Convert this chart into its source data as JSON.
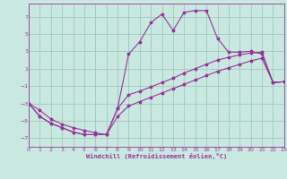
{
  "xlabel": "Windchill (Refroidissement éolien,°C)",
  "bg_color": "#c8e8e0",
  "grid_color": "#a0c8c0",
  "line_color": "#993399",
  "xlim": [
    0,
    23
  ],
  "ylim": [
    -8,
    8.5
  ],
  "yticks": [
    -7,
    -5,
    -3,
    -1,
    1,
    3,
    5,
    7
  ],
  "xticks": [
    0,
    1,
    2,
    3,
    4,
    5,
    6,
    7,
    8,
    9,
    10,
    11,
    12,
    13,
    14,
    15,
    16,
    17,
    18,
    19,
    20,
    21,
    22,
    23
  ],
  "line1_x": [
    0,
    1,
    2,
    3,
    4,
    5,
    6,
    7,
    8,
    9,
    10,
    11,
    12,
    13,
    14,
    15,
    16,
    17,
    18,
    19,
    20,
    21,
    22,
    23
  ],
  "line1_y": [
    -3.0,
    -4.5,
    -5.3,
    -5.8,
    -6.3,
    -6.6,
    -6.6,
    -6.6,
    -3.6,
    2.7,
    4.1,
    6.3,
    7.3,
    5.4,
    7.5,
    7.7,
    7.7,
    4.5,
    2.9,
    2.9,
    3.0,
    2.7,
    -0.6,
    -0.5
  ],
  "line2_x": [
    0,
    1,
    2,
    3,
    4,
    5,
    6,
    7,
    8,
    9,
    10,
    11,
    12,
    13,
    14,
    15,
    16,
    17,
    18,
    19,
    20,
    21,
    22,
    23
  ],
  "line2_y": [
    -3.0,
    -4.5,
    -5.3,
    -5.8,
    -6.3,
    -6.6,
    -6.6,
    -6.6,
    -3.6,
    -2.0,
    -1.6,
    -1.1,
    -0.6,
    -0.1,
    0.5,
    1.0,
    1.5,
    2.0,
    2.3,
    2.6,
    2.8,
    2.9,
    -0.6,
    -0.5
  ],
  "line3_x": [
    0,
    1,
    2,
    3,
    4,
    5,
    6,
    7,
    8,
    9,
    10,
    11,
    12,
    13,
    14,
    15,
    16,
    17,
    18,
    19,
    20,
    21,
    22,
    23
  ],
  "line3_y": [
    -3.0,
    -3.8,
    -4.8,
    -5.4,
    -5.8,
    -6.1,
    -6.4,
    -6.6,
    -4.5,
    -3.3,
    -2.8,
    -2.3,
    -1.8,
    -1.3,
    -0.8,
    -0.3,
    0.2,
    0.7,
    1.1,
    1.5,
    1.9,
    2.2,
    -0.6,
    -0.5
  ]
}
